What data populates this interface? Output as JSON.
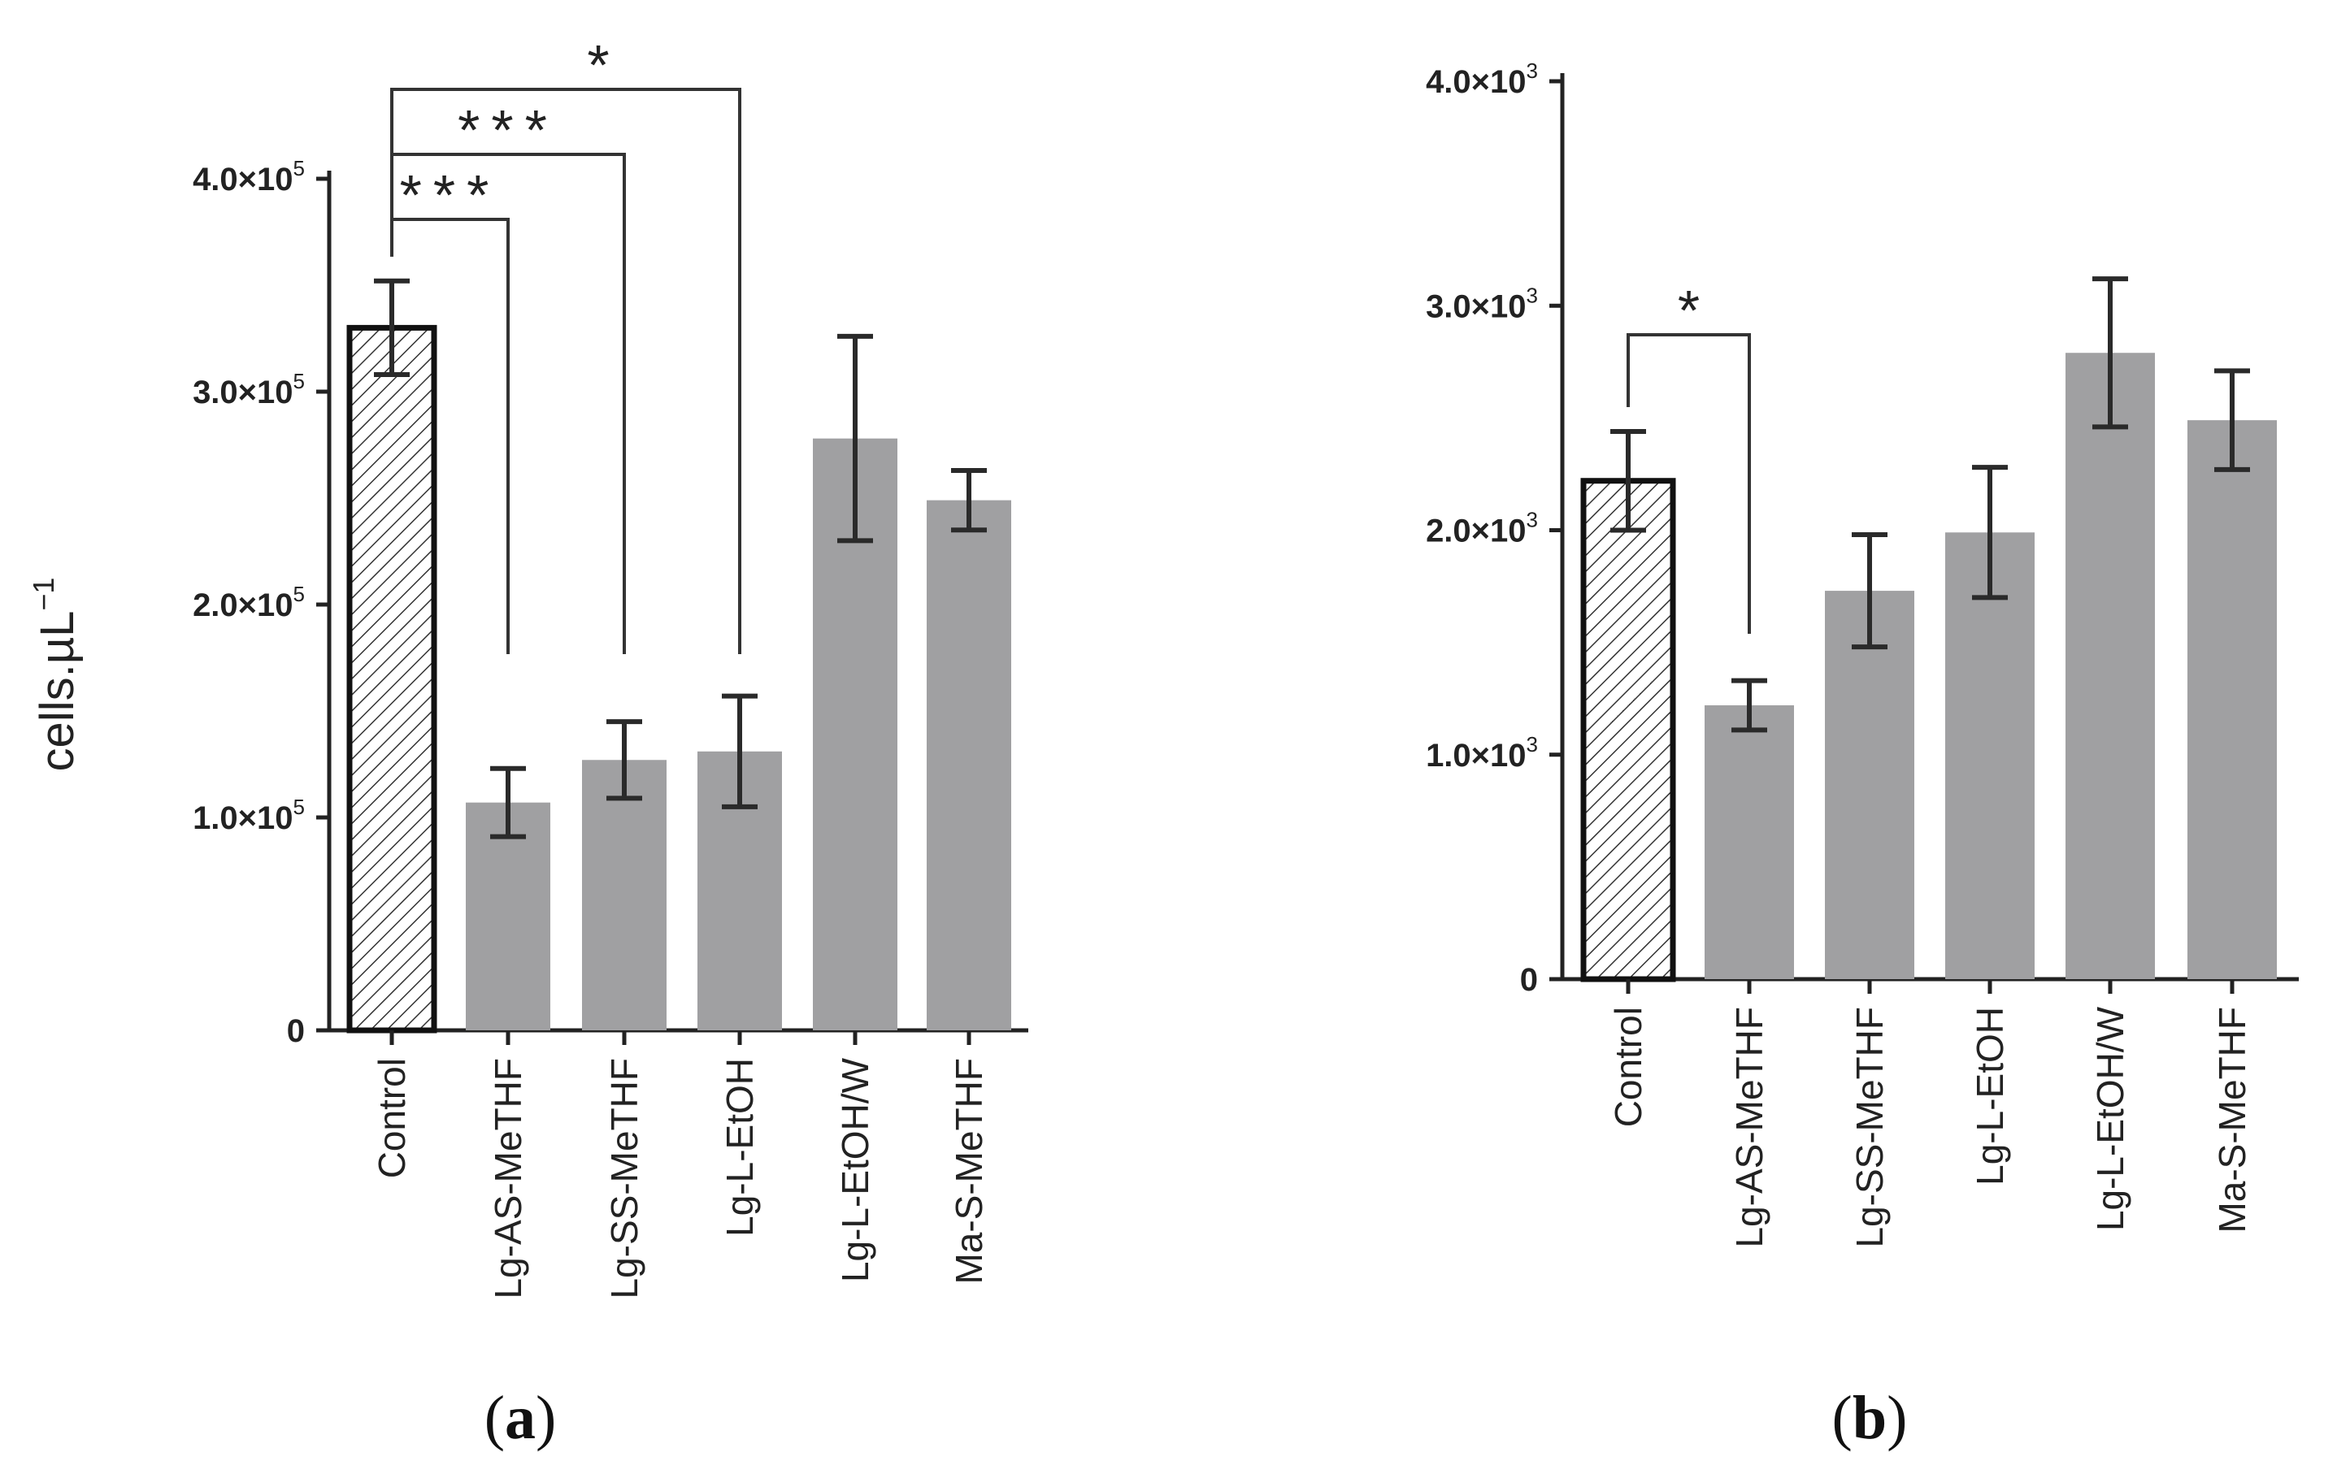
{
  "chart_data": [
    {
      "type": "bar",
      "panel_label": "a",
      "ylabel_main": "cells.µL",
      "ylabel_sup": "−1",
      "categories": [
        "Control",
        "Lg-AS-MeTHF",
        "Lg-SS-MeTHF",
        "Lg-L-EtOH",
        "Lg-L-EtOH/W",
        "Ma-S-MeTHF"
      ],
      "values": [
        330000,
        107000,
        127000,
        131000,
        278000,
        249000
      ],
      "errors": [
        22000,
        16000,
        18000,
        26000,
        48000,
        14000
      ],
      "ylim": [
        0,
        400000
      ],
      "yticks": [
        {
          "value": 0,
          "label": "0"
        },
        {
          "value": 100000,
          "label": "1.0×10",
          "exp": "5"
        },
        {
          "value": 200000,
          "label": "2.0×10",
          "exp": "5"
        },
        {
          "value": 300000,
          "label": "3.0×10",
          "exp": "5"
        },
        {
          "value": 400000,
          "label": "4.0×10",
          "exp": "5"
        }
      ],
      "significance": [
        {
          "from": 0,
          "to": 1,
          "label": "***"
        },
        {
          "from": 0,
          "to": 2,
          "label": "***"
        },
        {
          "from": 0,
          "to": 3,
          "label": "*"
        }
      ]
    },
    {
      "type": "bar",
      "panel_label": "b",
      "categories": [
        "Control",
        "Lg-AS-MeTHF",
        "Lg-SS-MeTHF",
        "Lg-L-EtOH",
        "Lg-L-EtOH/W",
        "Ma-S-MeTHF"
      ],
      "values": [
        2220,
        1220,
        1730,
        1990,
        2790,
        2490
      ],
      "errors": [
        220,
        110,
        250,
        290,
        330,
        220
      ],
      "ylim": [
        0,
        4000
      ],
      "yticks": [
        {
          "value": 0,
          "label": "0"
        },
        {
          "value": 1000,
          "label": "1.0×10",
          "exp": "3"
        },
        {
          "value": 2000,
          "label": "2.0×10",
          "exp": "3"
        },
        {
          "value": 3000,
          "label": "3.0×10",
          "exp": "3"
        },
        {
          "value": 4000,
          "label": "4.0×10",
          "exp": "3"
        }
      ],
      "significance": [
        {
          "from": 0,
          "to": 1,
          "label": "*"
        }
      ]
    }
  ]
}
